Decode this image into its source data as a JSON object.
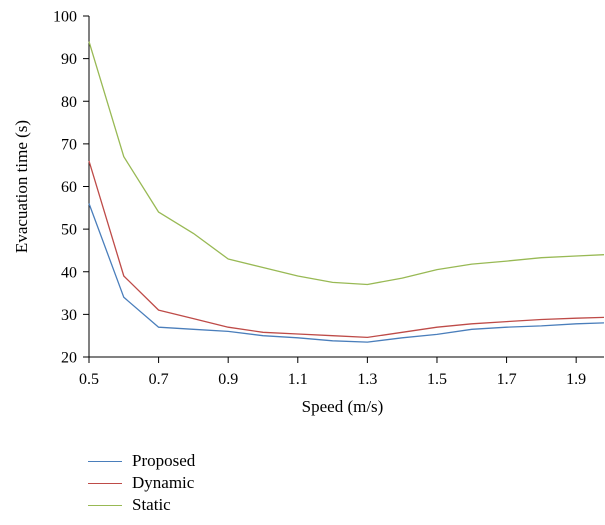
{
  "chart_data": {
    "type": "line",
    "xlabel": "Speed (m/s)",
    "ylabel": "Evacuation time (s)",
    "xlim": [
      0.5,
      1.98
    ],
    "ylim": [
      20,
      100
    ],
    "xticks": [
      "0.5",
      "0.7",
      "0.9",
      "1.1",
      "1.3",
      "1.5",
      "1.7",
      "1.9"
    ],
    "yticks": [
      "20",
      "30",
      "40",
      "50",
      "60",
      "70",
      "80",
      "90",
      "100"
    ],
    "x": [
      0.5,
      0.6,
      0.7,
      0.8,
      0.9,
      1.0,
      1.1,
      1.2,
      1.3,
      1.4,
      1.5,
      1.6,
      1.7,
      1.8,
      1.9,
      1.98
    ],
    "series": [
      {
        "name": "Proposed",
        "color": "#4a7ebb",
        "values": [
          56,
          34,
          27,
          26.5,
          26,
          25,
          24.5,
          23.8,
          23.5,
          24.5,
          25.3,
          26.5,
          27,
          27.3,
          27.8,
          28
        ]
      },
      {
        "name": "Dynamic",
        "color": "#be4b48",
        "values": [
          66,
          39,
          31,
          29,
          27,
          25.8,
          25.4,
          25,
          24.6,
          25.8,
          27,
          27.8,
          28.3,
          28.8,
          29.1,
          29.3
        ]
      },
      {
        "name": "Static",
        "color": "#98b954",
        "values": [
          94,
          67,
          54,
          49,
          43,
          41,
          39,
          37.5,
          37,
          38.5,
          40.5,
          41.8,
          42.5,
          43.3,
          43.7,
          44
        ]
      }
    ],
    "grid": false,
    "legend_position": "bottom-left"
  }
}
